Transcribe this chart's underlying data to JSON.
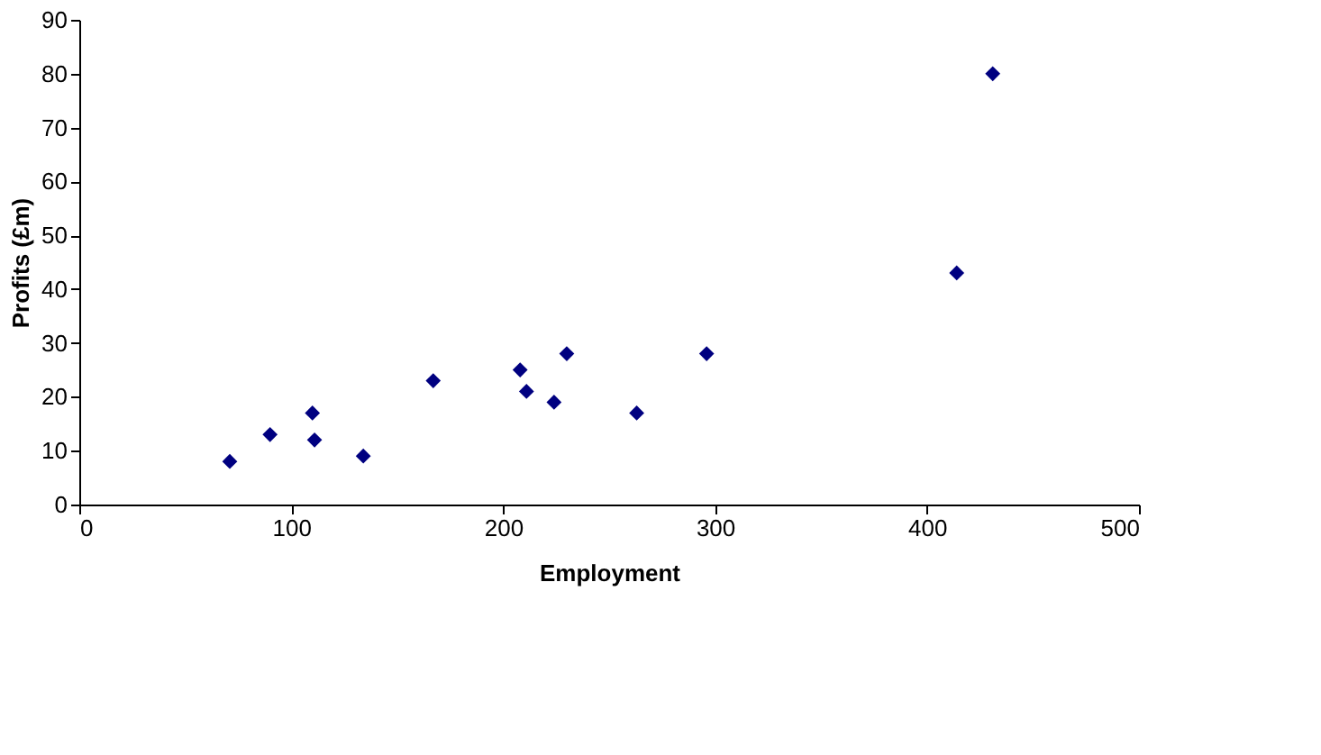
{
  "chart_data": {
    "type": "scatter",
    "xlabel": "Employment",
    "ylabel": "Profits (£m)",
    "x": [
      71,
      90,
      110,
      111,
      134,
      167,
      208,
      211,
      224,
      230,
      263,
      296,
      414,
      431
    ],
    "series": [
      {
        "color": "#000080",
        "values": [
          8,
          13,
          17,
          12,
          9,
          23,
          25,
          21,
          19,
          28,
          17,
          28,
          43,
          80
        ]
      }
    ],
    "xlim": [
      0,
      500
    ],
    "xticks": [
      0,
      100,
      200,
      300,
      400,
      500
    ],
    "ylim": [
      0,
      90
    ],
    "yticks": [
      0,
      10,
      20,
      30,
      40,
      50,
      60,
      70,
      80,
      90
    ],
    "marker": "diamond",
    "grid": false,
    "legend": false
  }
}
